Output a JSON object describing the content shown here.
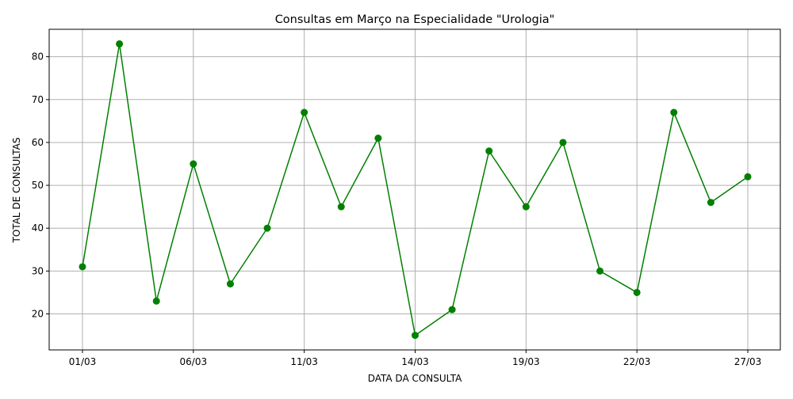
{
  "chart_data": {
    "type": "line",
    "title": "Consultas em Março na Especialidade \"Urologia\"",
    "xlabel": "DATA DA CONSULTA",
    "ylabel": "TOTAL DE CONSULTAS",
    "x_tick_labels": [
      "01/03",
      "06/03",
      "11/03",
      "14/03",
      "19/03",
      "22/03",
      "27/03"
    ],
    "y_ticks": [
      20,
      30,
      40,
      50,
      60,
      70,
      80
    ],
    "ylim": [
      11.6,
      86.4
    ],
    "grid": true,
    "series": [
      {
        "values": [
          31,
          83,
          23,
          55,
          27,
          40,
          67,
          45,
          61,
          15,
          21,
          58,
          45,
          60,
          30,
          25,
          67,
          46,
          52
        ],
        "color": "#008000",
        "marker": "circle"
      }
    ]
  }
}
